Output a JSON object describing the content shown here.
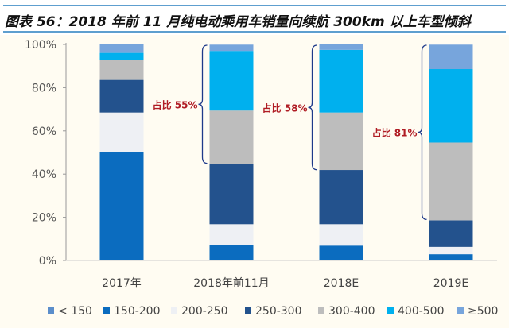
{
  "title": "图表 56：2018 年前 11 月纯电动乘用车销量向续航 300km 以上车型倾斜",
  "chart_data": {
    "type": "bar",
    "stacked": true,
    "title": "图表 56：2018 年前 11 月纯电动乘用车销量向续航 300km 以上车型倾斜",
    "xlabel": "",
    "ylabel": "",
    "ylim": [
      0,
      100
    ],
    "yticks": [
      "0%",
      "20%",
      "40%",
      "60%",
      "80%",
      "100%"
    ],
    "categories": [
      "2017年",
      "2018年前11月",
      "2018E",
      "2019E"
    ],
    "legend_position": "bottom",
    "series": [
      {
        "name": "< 150",
        "color": "#5b8ecb",
        "values": [
          0,
          0,
          0,
          0
        ]
      },
      {
        "name": "150-200",
        "color": "#0b6cbf",
        "values": [
          50.1,
          7.2,
          6.9,
          2.9
        ]
      },
      {
        "name": "200-250",
        "color": "#eef0f4",
        "values": [
          18.4,
          9.6,
          9.9,
          3.4
        ]
      },
      {
        "name": "250-300",
        "color": "#23528d",
        "values": [
          15.1,
          28.0,
          25.1,
          12.3
        ]
      },
      {
        "name": "300-400",
        "color": "#bdbdbd",
        "values": [
          9.4,
          24.6,
          26.6,
          36.0
        ]
      },
      {
        "name": "400-500",
        "color": "#00b0ee",
        "values": [
          3.1,
          27.6,
          29.0,
          34.0
        ]
      },
      {
        "name": "≥500",
        "color": "#77a5dc",
        "values": [
          3.9,
          2.9,
          2.5,
          11.3
        ]
      }
    ],
    "annotations": [
      {
        "text": "占比 55%",
        "category": "2018年前11月",
        "from": 45,
        "to": 100
      },
      {
        "text": "占比 58%",
        "category": "2018E",
        "from": 42,
        "to": 100
      },
      {
        "text": "占比 81%",
        "category": "2019E",
        "from": 19,
        "to": 100
      }
    ]
  }
}
